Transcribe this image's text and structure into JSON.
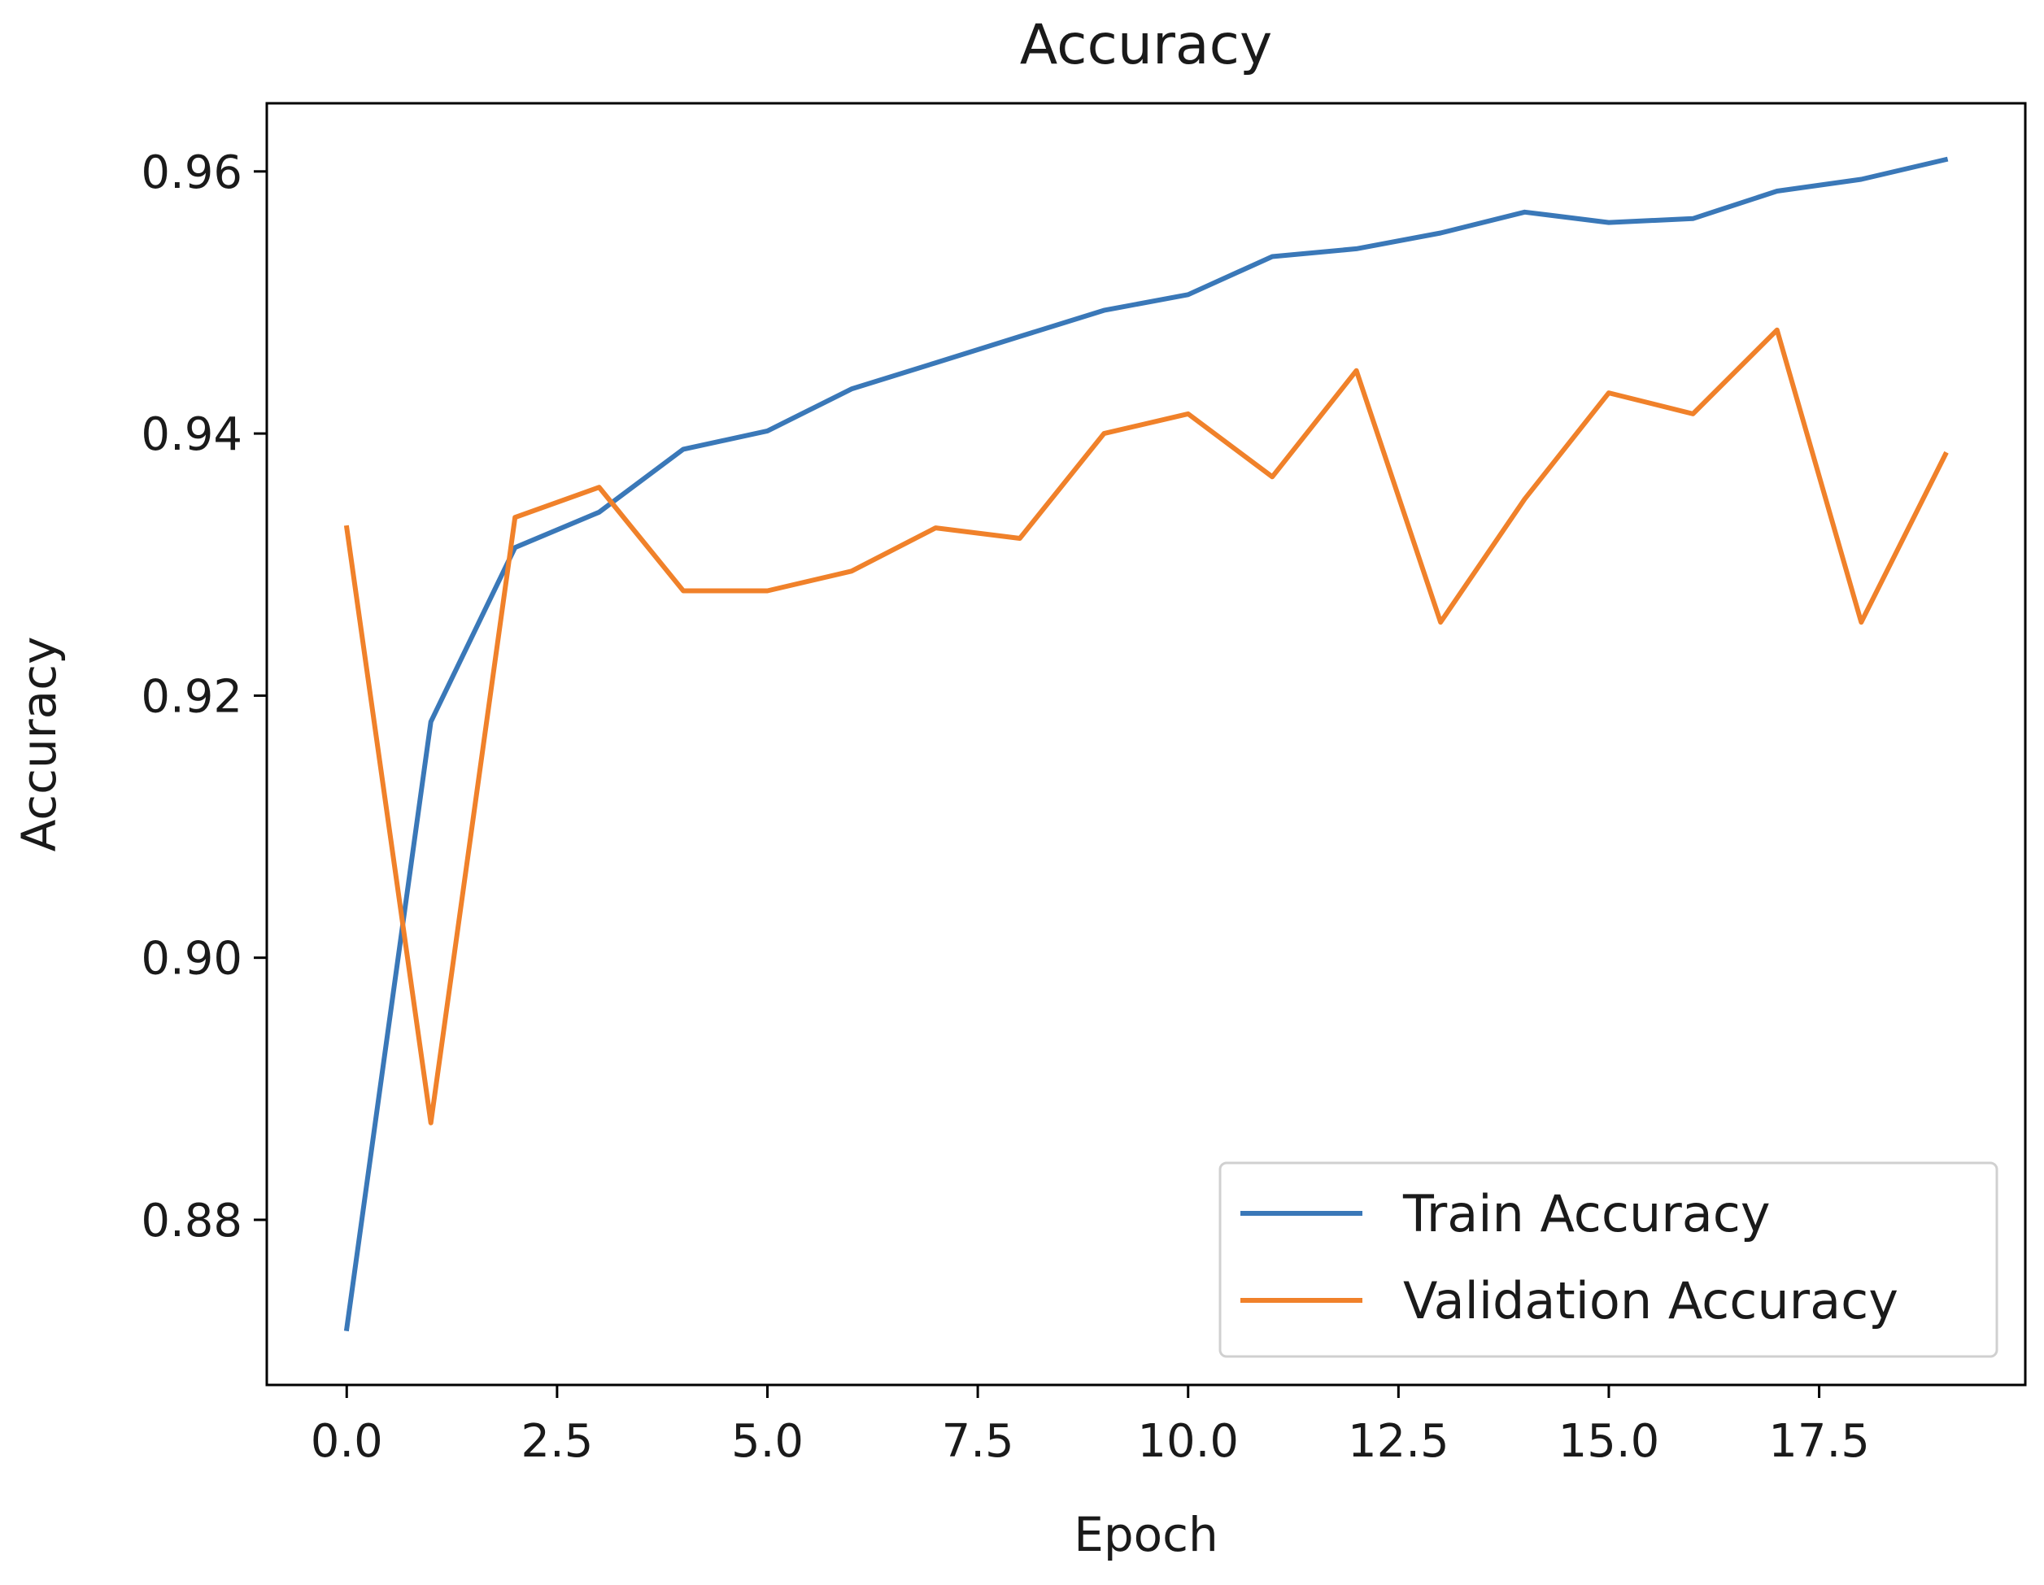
{
  "chart_data": {
    "type": "line",
    "title": "Accuracy",
    "xlabel": "Epoch",
    "ylabel": "Accuracy",
    "x": [
      0,
      1,
      2,
      3,
      4,
      5,
      6,
      7,
      8,
      9,
      10,
      11,
      12,
      13,
      14,
      15,
      16,
      17,
      18,
      19
    ],
    "series": [
      {
        "name": "Train Accuracy",
        "color": "#3a78b8",
        "values": [
          0.8717,
          0.918,
          0.9313,
          0.934,
          0.9388,
          0.9402,
          0.9434,
          0.9454,
          0.9474,
          0.9494,
          0.9506,
          0.9535,
          0.9541,
          0.9553,
          0.9569,
          0.9561,
          0.9564,
          0.9585,
          0.9594,
          0.9609
        ]
      },
      {
        "name": "Validation Accuracy",
        "color": "#f0812a",
        "values": [
          0.9328,
          0.8874,
          0.9336,
          0.9359,
          0.928,
          0.928,
          0.9295,
          0.9328,
          0.932,
          0.94,
          0.9415,
          0.9367,
          0.9448,
          0.9256,
          0.935,
          0.9431,
          0.9415,
          0.9479,
          0.9256,
          0.9384
        ]
      }
    ],
    "xlim": [
      -0.95,
      19.95
    ],
    "ylim": [
      0.8674,
      0.9652
    ],
    "xticks": [
      0.0,
      2.5,
      5.0,
      7.5,
      10.0,
      12.5,
      15.0,
      17.5
    ],
    "xtick_labels": [
      "0.0",
      "2.5",
      "5.0",
      "7.5",
      "10.0",
      "12.5",
      "15.0",
      "17.5"
    ],
    "yticks": [
      0.88,
      0.9,
      0.92,
      0.94,
      0.96
    ],
    "ytick_labels": [
      "0.88",
      "0.90",
      "0.92",
      "0.94",
      "0.96"
    ],
    "grid": false,
    "legend_position": "lower-right"
  }
}
